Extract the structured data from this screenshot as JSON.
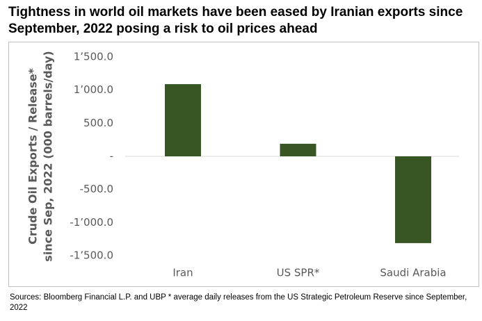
{
  "chart_data": {
    "type": "bar",
    "title": "Tightness in world oil markets have been eased by Iranian exports since September, 2022 posing a risk to oil prices ahead",
    "y_label": [
      "Crude Oil Exports / Release*",
      "since Sep, 2022 (000 barrels/day)"
    ],
    "categories": [
      "Iran",
      "US SPR*",
      "Saudi Arabia"
    ],
    "values": [
      1090,
      190,
      -1310
    ],
    "color": "#375623",
    "ylim": [
      -1500,
      1500
    ],
    "yticks": [
      {
        "value": -1500,
        "label": "-1’500.0"
      },
      {
        "value": -1000,
        "label": "-1’000.0"
      },
      {
        "value": -500,
        "label": "-500.0"
      },
      {
        "value": 0,
        "label": "-"
      },
      {
        "value": 500,
        "label": "500.0"
      },
      {
        "value": 1000,
        "label": "1’000.0"
      },
      {
        "value": 1500,
        "label": "1’500.0"
      }
    ],
    "grid": false,
    "note": "Sources: Bloomberg Financial L.P. and UBP * average daily releases from the US Strategic Petroleum Reserve since September, 2022"
  }
}
